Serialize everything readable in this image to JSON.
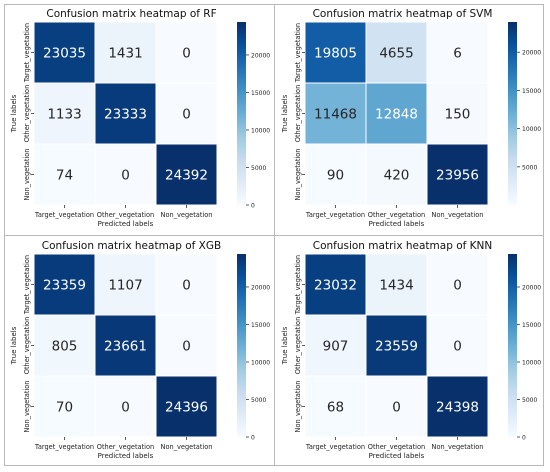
{
  "chart_data": [
    {
      "type": "heatmap",
      "title": "Confusion matrix heatmap of RF",
      "xlabel": "Predicted labels",
      "ylabel": "True labels",
      "x_categories": [
        "Target_vegetation",
        "Other_vegetation",
        "Non_vegetation"
      ],
      "y_categories": [
        "Target_vegetation",
        "Other_vegetation",
        "Non_vegetation"
      ],
      "values": [
        [
          23035,
          1431,
          0
        ],
        [
          1133,
          23333,
          0
        ],
        [
          74,
          0,
          24392
        ]
      ],
      "colorbar": {
        "range": [
          0,
          24392
        ],
        "ticks": [
          0,
          5000,
          10000,
          15000,
          20000
        ]
      }
    },
    {
      "type": "heatmap",
      "title": "Confusion matrix heatmap of SVM",
      "xlabel": "Predicted labels",
      "ylabel": "True labels",
      "x_categories": [
        "Target_vegetation",
        "Other_vegetation",
        "Non_vegetation"
      ],
      "y_categories": [
        "Target_vegetation",
        "Other_vegetation",
        "Non_vegetation"
      ],
      "values": [
        [
          19805,
          4655,
          6
        ],
        [
          11468,
          12848,
          150
        ],
        [
          90,
          420,
          23956
        ]
      ],
      "colorbar": {
        "range": [
          6,
          23956
        ],
        "ticks": [
          5000,
          10000,
          15000,
          20000
        ]
      }
    },
    {
      "type": "heatmap",
      "title": "Confusion matrix heatmap of XGB",
      "xlabel": "Predicted labels",
      "ylabel": "True labels",
      "x_categories": [
        "Target_vegetation",
        "Other_vegetation",
        "Non_vegetation"
      ],
      "y_categories": [
        "Target_vegetation",
        "Other_vegetation",
        "Non_vegetation"
      ],
      "values": [
        [
          23359,
          1107,
          0
        ],
        [
          805,
          23661,
          0
        ],
        [
          70,
          0,
          24396
        ]
      ],
      "colorbar": {
        "range": [
          0,
          24396
        ],
        "ticks": [
          0,
          5000,
          10000,
          15000,
          20000
        ]
      }
    },
    {
      "type": "heatmap",
      "title": "Confusion matrix heatmap of KNN",
      "xlabel": "Predicted labels",
      "ylabel": "True labels",
      "x_categories": [
        "Target_vegetation",
        "Other_vegetation",
        "Non_vegetation"
      ],
      "y_categories": [
        "Target_vegetation",
        "Other_vegetation",
        "Non_vegetation"
      ],
      "values": [
        [
          23032,
          1434,
          0
        ],
        [
          907,
          23559,
          0
        ],
        [
          68,
          0,
          24398
        ]
      ],
      "colorbar": {
        "range": [
          0,
          24398
        ],
        "ticks": [
          0,
          5000,
          10000,
          15000,
          20000
        ]
      }
    }
  ],
  "colors": {
    "cmap_low": "#f7fbff",
    "cmap_high": "#08306b",
    "grid_line": "#ffffff",
    "frame": "#b9b9b9"
  }
}
